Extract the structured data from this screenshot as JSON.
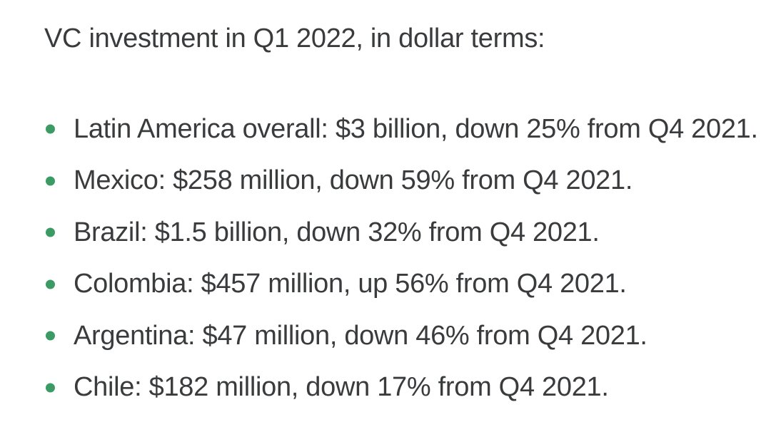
{
  "page": {
    "title": "VC investment in Q1 2022, in dollar terms:"
  },
  "list": {
    "items": [
      {
        "text": "Latin America overall: $3 billion, down 25% from Q4 2021."
      },
      {
        "text": "Mexico: $258 million, down 59% from Q4 2021."
      },
      {
        "text": "Brazil: $1.5 billion, down 32% from Q4 2021."
      },
      {
        "text": "Colombia: $457 million, up 56% from Q4 2021."
      },
      {
        "text": "Argentina: $47 million, down 46% from Q4 2021."
      },
      {
        "text": "Chile: $182 million, down 17% from Q4 2021."
      }
    ]
  },
  "theme": {
    "bullet-color": "#3c9b64",
    "text-color": "#3a3b3d",
    "background-color": "#ffffff"
  }
}
